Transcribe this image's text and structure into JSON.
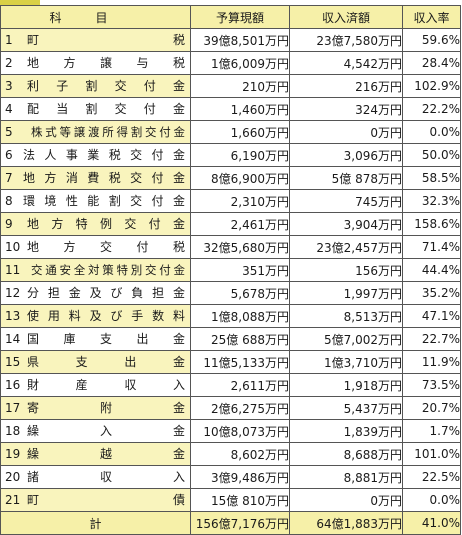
{
  "header": {
    "subject": "科目",
    "budget": "予算現額",
    "received": "収入済額",
    "rate": "収入率"
  },
  "rows": [
    {
      "no": "1",
      "name": "町税",
      "budget": "39億8,501万円",
      "received": "23億7,580万円",
      "rate": "59.6%"
    },
    {
      "no": "2",
      "name": "地方譲与税",
      "budget": "1億6,009万円",
      "received": "4,542万円",
      "rate": "28.4%"
    },
    {
      "no": "3",
      "name": "利子割交付金",
      "budget": "210万円",
      "received": "216万円",
      "rate": "102.9%"
    },
    {
      "no": "4",
      "name": "配当割交付金",
      "budget": "1,460万円",
      "received": "324万円",
      "rate": "22.2%"
    },
    {
      "no": "5",
      "name": "株式等譲渡所得割交付金",
      "budget": "1,660万円",
      "received": "0万円",
      "rate": "0.0%"
    },
    {
      "no": "6",
      "name": "法人事業税交付金",
      "budget": "6,190万円",
      "received": "3,096万円",
      "rate": "50.0%"
    },
    {
      "no": "7",
      "name": "地方消費税交付金",
      "budget": "8億6,900万円",
      "received": "5億 878万円",
      "rate": "58.5%"
    },
    {
      "no": "8",
      "name": "環境性能割交付金",
      "budget": "2,310万円",
      "received": "745万円",
      "rate": "32.3%"
    },
    {
      "no": "9",
      "name": "地方特例交付金",
      "budget": "2,461万円",
      "received": "3,904万円",
      "rate": "158.6%"
    },
    {
      "no": "10",
      "name": "地方交付税",
      "budget": "32億5,680万円",
      "received": "23億2,457万円",
      "rate": "71.4%"
    },
    {
      "no": "11",
      "name": "交通安全対策特別交付金",
      "budget": "351万円",
      "received": "156万円",
      "rate": "44.4%"
    },
    {
      "no": "12",
      "name": "分担金及び負担金",
      "budget": "5,678万円",
      "received": "1,997万円",
      "rate": "35.2%"
    },
    {
      "no": "13",
      "name": "使用料及び手数料",
      "budget": "1億8,088万円",
      "received": "8,513万円",
      "rate": "47.1%"
    },
    {
      "no": "14",
      "name": "国庫支出金",
      "budget": "25億 688万円",
      "received": "5億7,002万円",
      "rate": "22.7%"
    },
    {
      "no": "15",
      "name": "県支出金",
      "budget": "11億5,133万円",
      "received": "1億3,710万円",
      "rate": "11.9%"
    },
    {
      "no": "16",
      "name": "財産収入",
      "budget": "2,611万円",
      "received": "1,918万円",
      "rate": "73.5%"
    },
    {
      "no": "17",
      "name": "寄附金",
      "budget": "2億6,275万円",
      "received": "5,437万円",
      "rate": "20.7%"
    },
    {
      "no": "18",
      "name": "繰入金",
      "budget": "10億8,073万円",
      "received": "1,839万円",
      "rate": "1.7%"
    },
    {
      "no": "19",
      "name": "繰越金",
      "budget": "8,602万円",
      "received": "8,688万円",
      "rate": "101.0%"
    },
    {
      "no": "20",
      "name": "諸収入",
      "budget": "3億9,486万円",
      "received": "8,881万円",
      "rate": "22.5%"
    },
    {
      "no": "21",
      "name": "町債",
      "budget": "15億 810万円",
      "received": "0万円",
      "rate": "0.0%"
    }
  ],
  "total": {
    "label": "計",
    "budget": "156億7,176万円",
    "received": "64億1,883万円",
    "rate": "41.0%"
  },
  "colors": {
    "header_bg": "#f6f0a8",
    "stripe_bg": "#f9f4bd",
    "border": "#555555"
  }
}
